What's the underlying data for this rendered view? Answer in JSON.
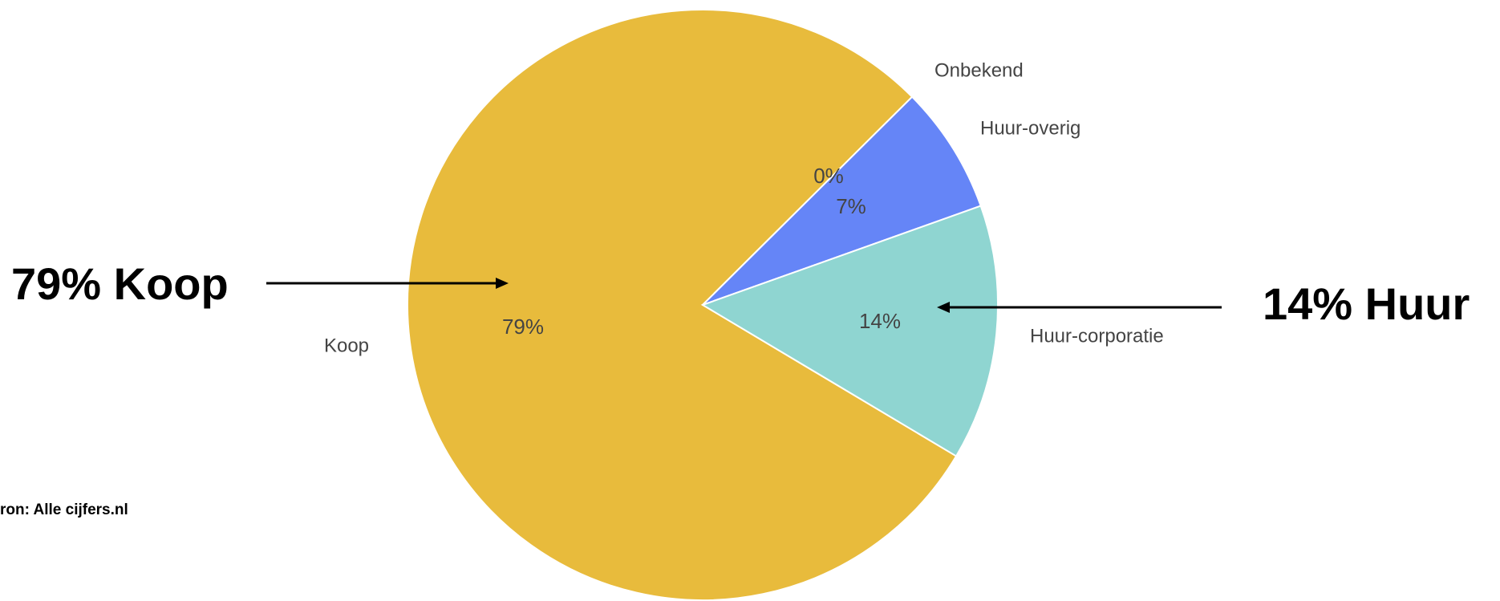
{
  "chart_data": {
    "type": "pie",
    "categories": [
      "Koop",
      "Onbekend",
      "Huur-overig",
      "Huur-corporatie"
    ],
    "values": [
      79,
      0,
      7,
      14
    ],
    "value_labels": [
      "79%",
      "0%",
      "7%",
      "14%"
    ],
    "colors": [
      "#e8bb3c",
      "#d9534f",
      "#6585f7",
      "#8fd5d1"
    ],
    "annotations": [
      "79% Koop",
      "14% Huur"
    ],
    "source": "ron: Alle cijfers.nl"
  }
}
